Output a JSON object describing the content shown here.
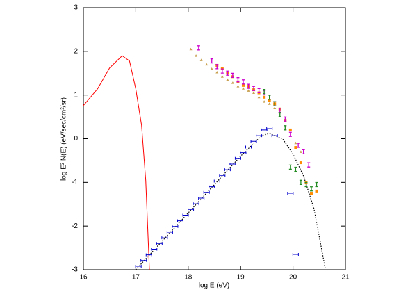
{
  "chart_data": {
    "type": "scatter",
    "x_label": "log E (eV)",
    "y_label": "log E² N(E) (eV/sec/cm²/sr)",
    "xlim": [
      16,
      21
    ],
    "xticks": [
      16,
      17,
      18,
      19,
      20,
      21
    ],
    "ylim": [
      -3,
      3
    ],
    "yticks": [
      -3,
      -2,
      -1,
      0,
      1,
      2,
      3
    ],
    "series": [
      {
        "style": "line",
        "color": "#ff0000",
        "x": [
          16.0,
          16.27,
          16.5,
          16.74,
          16.88,
          17.0,
          17.11,
          17.19,
          17.26
        ],
        "values": [
          0.76,
          1.14,
          1.62,
          1.9,
          1.78,
          1.14,
          0.31,
          -0.96,
          -3.0
        ]
      },
      {
        "style": "dotted",
        "color": "#000000",
        "x": [
          17.0,
          17.5,
          18.0,
          18.5,
          19.0,
          19.4,
          19.55,
          19.8,
          20.0,
          20.2,
          20.4,
          20.62
        ],
        "values": [
          -3.0,
          -2.35,
          -1.7,
          -1.05,
          -0.4,
          0.07,
          0.12,
          0.0,
          -0.35,
          -0.85,
          -1.6,
          -3.0
        ]
      },
      {
        "style": "hbar",
        "color": "#0000cc",
        "x": [
          17.05,
          17.15,
          17.25,
          17.35,
          17.45,
          17.55,
          17.65,
          17.75,
          17.85,
          17.95,
          18.05,
          18.15,
          18.25,
          18.35,
          18.45,
          18.55,
          18.65,
          18.75,
          18.85,
          18.95,
          19.05,
          19.15,
          19.25,
          19.35,
          19.45,
          19.55,
          19.65,
          19.95,
          20.05
        ],
        "values": [
          -2.92,
          -2.79,
          -2.66,
          -2.53,
          -2.4,
          -2.27,
          -2.14,
          -2.01,
          -1.88,
          -1.75,
          -1.62,
          -1.49,
          -1.36,
          -1.23,
          -1.1,
          -0.97,
          -0.84,
          -0.71,
          -0.58,
          -0.45,
          -0.32,
          -0.19,
          -0.06,
          0.07,
          0.2,
          0.23,
          0.07,
          -1.25,
          -2.65
        ]
      },
      {
        "style": "triangle",
        "color": "#c8a050",
        "x": [
          18.05,
          18.15,
          18.25,
          18.35,
          18.45,
          18.55,
          18.65,
          18.75,
          18.85,
          18.95,
          19.05,
          19.15,
          19.25,
          19.35,
          19.45,
          19.55,
          19.65,
          19.75,
          19.85,
          19.95,
          20.05,
          20.15
        ],
        "values": [
          2.05,
          1.9,
          1.8,
          1.7,
          1.6,
          1.52,
          1.42,
          1.35,
          1.28,
          1.2,
          1.15,
          1.1,
          1.05,
          0.95,
          0.85,
          0.8,
          0.7,
          0.6,
          0.4,
          0.2,
          -0.1,
          -0.3
        ]
      },
      {
        "style": "square",
        "color": "#ff8c00",
        "x": [
          18.55,
          18.65,
          18.75,
          18.85,
          18.95,
          19.05,
          19.15,
          19.25,
          19.35,
          19.45,
          19.55,
          19.65,
          19.75,
          19.85,
          19.95,
          20.05,
          20.15,
          20.25,
          20.35,
          20.45
        ],
        "values": [
          1.68,
          1.6,
          1.5,
          1.42,
          1.3,
          1.22,
          1.2,
          1.12,
          1.05,
          0.95,
          0.88,
          0.8,
          0.68,
          0.42,
          0.2,
          -0.2,
          -0.55,
          -1.0,
          -1.25,
          -1.2
        ]
      },
      {
        "style": "point",
        "color": "#cc00cc",
        "x": [
          18.2,
          18.45,
          18.55,
          18.65,
          18.75,
          18.85,
          18.95,
          19.05,
          19.15,
          19.25,
          19.35,
          19.45,
          19.55,
          19.65,
          19.75,
          19.85,
          19.95,
          20.1,
          20.2,
          20.3
        ],
        "values": [
          2.08,
          1.78,
          1.65,
          1.55,
          1.5,
          1.45,
          1.35,
          1.3,
          1.2,
          1.15,
          1.1,
          1.05,
          0.95,
          0.8,
          0.65,
          0.45,
          0.1,
          -0.15,
          -0.3,
          -0.6
        ]
      },
      {
        "style": "point",
        "color": "#228b22",
        "x": [
          19.45,
          19.55,
          19.65,
          19.75,
          19.85,
          19.95,
          20.05,
          20.15,
          20.25,
          20.35,
          20.45
        ],
        "values": [
          1.08,
          0.95,
          0.8,
          0.55,
          0.25,
          -0.65,
          -0.7,
          -1.0,
          -1.05,
          -1.15,
          -1.05
        ]
      }
    ]
  }
}
